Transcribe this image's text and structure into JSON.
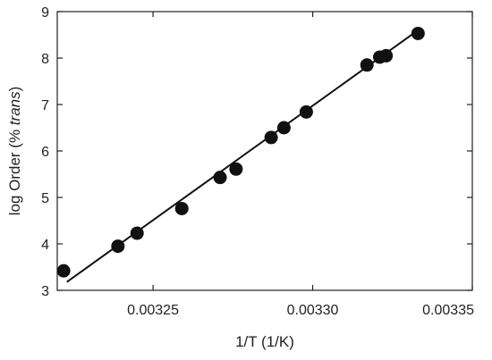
{
  "chart_data": {
    "type": "scatter",
    "xlabel": "1/T (1/K)",
    "ylabel": {
      "prefix": "log Order (% ",
      "italic": "trans",
      "suffix": ")"
    },
    "xlim": [
      0.00322,
      0.00335
    ],
    "ylim": [
      3,
      9
    ],
    "xticks": [
      {
        "value": 0.00325,
        "label": "0.00325"
      },
      {
        "value": 0.0033,
        "label": "0.00330"
      },
      {
        "value": 0.00335,
        "label": "0.00335"
      }
    ],
    "yticks": [
      {
        "value": 3,
        "label": "3"
      },
      {
        "value": 4,
        "label": "4"
      },
      {
        "value": 5,
        "label": "5"
      },
      {
        "value": 6,
        "label": "6"
      },
      {
        "value": 7,
        "label": "7"
      },
      {
        "value": 8,
        "label": "8"
      },
      {
        "value": 9,
        "label": "9"
      }
    ],
    "series": [
      {
        "points": [
          {
            "x": 0.003222,
            "y": 3.42
          },
          {
            "x": 0.003239,
            "y": 3.95
          },
          {
            "x": 0.003245,
            "y": 4.23
          },
          {
            "x": 0.003259,
            "y": 4.76
          },
          {
            "x": 0.003271,
            "y": 5.43
          },
          {
            "x": 0.003276,
            "y": 5.61
          },
          {
            "x": 0.003287,
            "y": 6.29
          },
          {
            "x": 0.003291,
            "y": 6.5
          },
          {
            "x": 0.003298,
            "y": 6.84
          },
          {
            "x": 0.003317,
            "y": 7.85
          },
          {
            "x": 0.003321,
            "y": 8.02
          },
          {
            "x": 0.003323,
            "y": 8.05
          },
          {
            "x": 0.003333,
            "y": 8.53
          }
        ]
      }
    ],
    "fit_line": {
      "x": [
        0.003223,
        0.003333
      ],
      "y": [
        3.18,
        8.6
      ]
    },
    "colors": {
      "marker": "#111111",
      "line": "#111111",
      "axes": "#222222"
    },
    "grid": false,
    "legend": "none"
  }
}
